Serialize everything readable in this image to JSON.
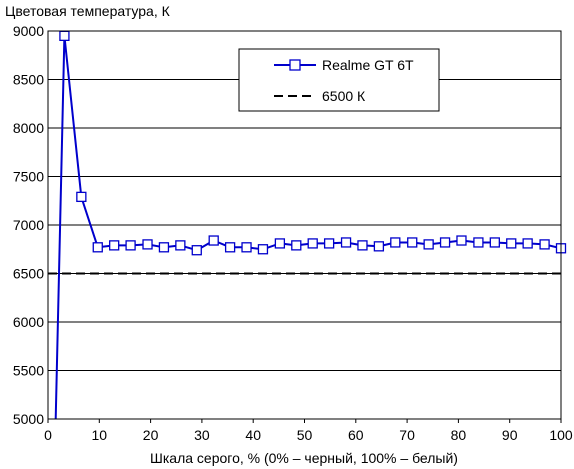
{
  "chart_data": {
    "type": "line",
    "title": "Цветовая температура, К",
    "xlabel": "Шкала серого, % (0% – черный, 100% – белый)",
    "ylabel": "",
    "xlim": [
      0,
      100
    ],
    "ylim": [
      5000,
      9000
    ],
    "x_ticks": [
      0,
      10,
      20,
      30,
      40,
      50,
      60,
      70,
      80,
      90,
      100
    ],
    "y_ticks": [
      5000,
      5500,
      6000,
      6500,
      7000,
      7500,
      8000,
      8500,
      9000
    ],
    "grid": "horizontal",
    "legend_position": "top-right",
    "series": [
      {
        "name": "Realme GT 6T",
        "color": "#0000CC",
        "marker": "open-square",
        "x": [
          1.5,
          3.2,
          6.5,
          9.7,
          12.9,
          16.1,
          19.4,
          22.6,
          25.8,
          29.0,
          32.3,
          35.5,
          38.7,
          41.9,
          45.2,
          48.4,
          51.6,
          54.8,
          58.1,
          61.3,
          64.5,
          67.7,
          71.0,
          74.2,
          77.4,
          80.6,
          83.9,
          87.1,
          90.3,
          93.5,
          96.8,
          100.0
        ],
        "y": [
          5000,
          8950,
          7290,
          6770,
          6790,
          6790,
          6800,
          6770,
          6790,
          6740,
          6840,
          6770,
          6770,
          6750,
          6810,
          6790,
          6810,
          6810,
          6820,
          6790,
          6780,
          6820,
          6820,
          6800,
          6820,
          6840,
          6820,
          6820,
          6810,
          6810,
          6800,
          6760
        ]
      },
      {
        "name": "6500 К",
        "color": "#000000",
        "style": "dashed",
        "x": [
          0,
          100
        ],
        "y": [
          6500,
          6500
        ]
      }
    ]
  }
}
